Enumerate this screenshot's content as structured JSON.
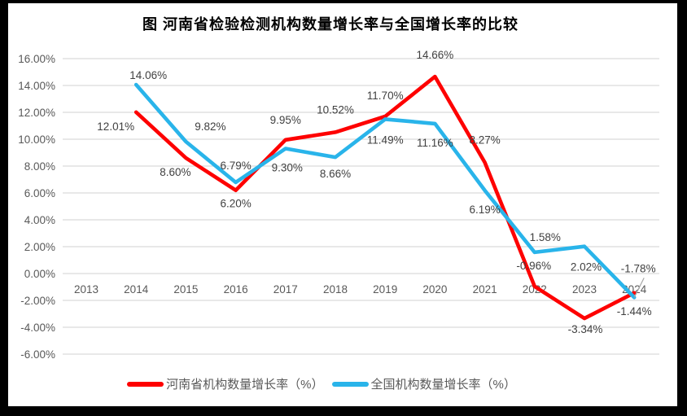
{
  "window": {
    "background": "#000000"
  },
  "page": {
    "background": "#FFFFFF"
  },
  "header": {
    "title": "图  河南省检验检测机构数量增长率与全国增长率的比较"
  },
  "style": {
    "gridline_color": "#D9D9D9",
    "axis_text_color": "#595959",
    "data_label_color": "#404040",
    "leader_color": "#A6A6A6",
    "legend_text_color": "#595959",
    "henan_color": "#FE0000",
    "national_color": "#29B4EA"
  },
  "chart_data": {
    "type": "line",
    "title": "图  河南省检验检测机构数量增长率与全国增长率的比较",
    "categories": [
      "2013",
      "2014",
      "2015",
      "2016",
      "2017",
      "2018",
      "2019",
      "2020",
      "2021",
      "2022",
      "2023",
      "2024"
    ],
    "y_axis": {
      "min": -6,
      "max": 16,
      "step": 2,
      "decimals": 2,
      "suffix": "%"
    },
    "grid": true,
    "legend_position": "bottom",
    "series": [
      {
        "key": "henan",
        "name": "河南省机构数量增长率（%）",
        "color": "#FE0000",
        "start_index": 1,
        "values": [
          12.01,
          8.6,
          6.2,
          9.95,
          10.52,
          11.7,
          14.66,
          8.27,
          -0.96,
          -3.34,
          -1.44
        ],
        "label_offsets": [
          [
            -25,
            17
          ],
          [
            -13,
            17
          ],
          [
            0,
            16
          ],
          [
            0,
            -25
          ],
          [
            0,
            -28
          ],
          [
            0,
            -26
          ],
          [
            0,
            -27
          ],
          [
            0,
            -28
          ],
          [
            -1,
            -26
          ],
          [
            1,
            13
          ],
          [
            0,
            22
          ]
        ]
      },
      {
        "key": "national",
        "name": "全国机构数量增长率（%）",
        "color": "#29B4EA",
        "start_index": 1,
        "values": [
          14.06,
          9.82,
          6.79,
          9.3,
          8.66,
          11.49,
          11.16,
          6.19,
          1.58,
          2.02,
          -1.78
        ],
        "label_offsets": [
          [
            15,
            -12
          ],
          [
            30,
            -19
          ],
          [
            0,
            -21
          ],
          [
            2,
            23
          ],
          [
            0,
            20
          ],
          [
            0,
            25
          ],
          [
            0,
            23
          ],
          [
            0,
            23
          ],
          [
            13,
            -19
          ],
          [
            2,
            25
          ],
          [
            5,
            -36
          ]
        ]
      }
    ],
    "annotation_leader": {
      "series_key": "national",
      "category": "2024",
      "dx": 12,
      "dy": -24
    }
  }
}
